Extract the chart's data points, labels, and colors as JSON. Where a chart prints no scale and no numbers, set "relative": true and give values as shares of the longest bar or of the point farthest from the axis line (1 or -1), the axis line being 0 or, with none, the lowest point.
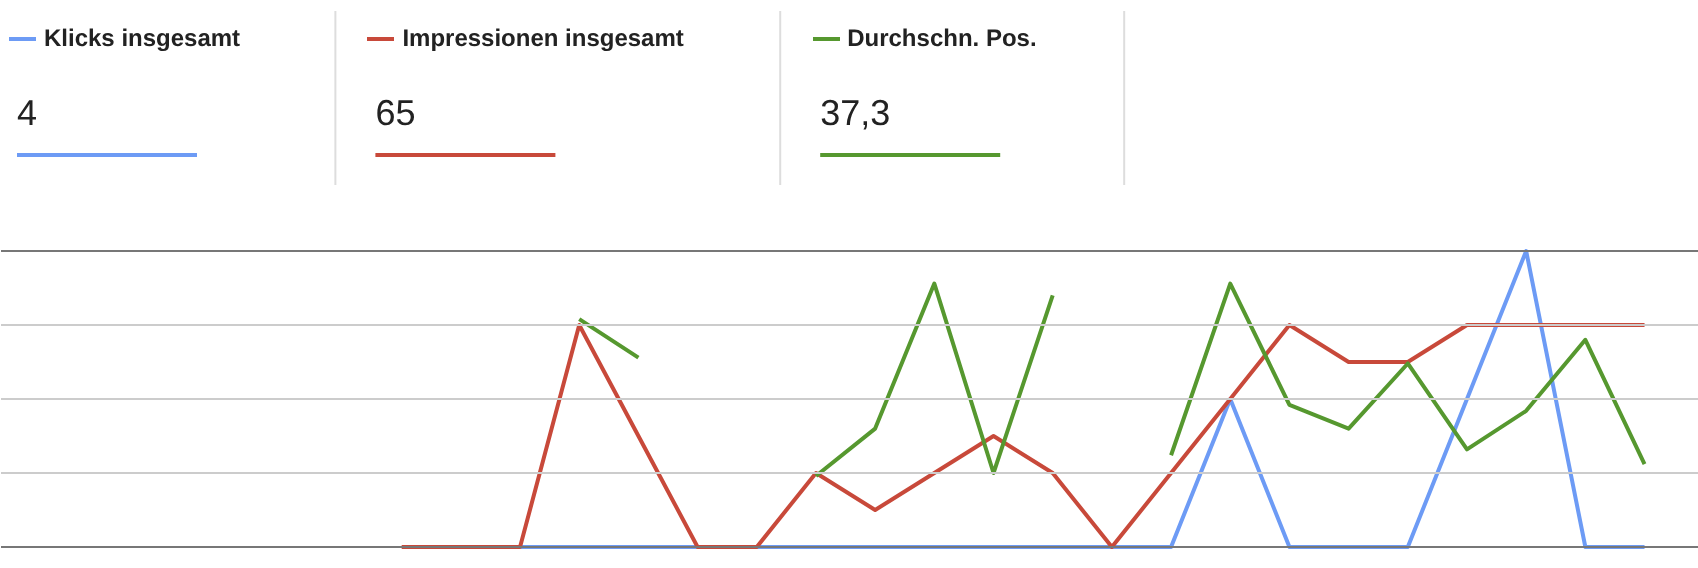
{
  "chart_data": {
    "type": "line",
    "relative": true,
    "grid": "y",
    "legend": "top left",
    "line_style": "solid",
    "marker": "none",
    "categories": [
      null,
      null,
      null,
      null,
      null,
      null,
      null,
      null,
      null,
      null,
      null,
      null,
      null,
      null,
      null,
      null,
      null,
      null,
      null,
      null,
      null,
      null,
      null,
      null,
      null,
      null,
      null,
      null
    ],
    "series": [
      {
        "name": "Klicks insgesamt",
        "color": "#6d9bf5",
        "values": [
          null,
          null,
          null,
          null,
          null,
          null,
          null,
          null,
          0,
          0,
          0,
          0,
          0,
          0,
          0,
          0,
          0,
          0,
          0,
          0,
          0.5,
          0,
          0,
          0,
          0.5,
          1,
          0,
          0
        ]
      },
      {
        "name": "Impressionen insgesamt",
        "color": "#c8493a",
        "values": [
          null,
          null,
          null,
          null,
          null,
          null,
          0,
          0,
          0,
          0.75,
          0.375,
          0,
          0,
          0.25,
          0.125,
          0.25,
          0.375,
          0.25,
          0,
          0.25,
          0.5,
          0.75,
          0.625,
          0.625,
          0.75,
          0.75,
          0.75,
          0.75
        ]
      },
      {
        "name": "Durchschn. Pos.",
        "color": "#56982f",
        "values": [
          null,
          null,
          null,
          null,
          null,
          null,
          null,
          null,
          null,
          0.77,
          0.64,
          null,
          null,
          0.24,
          0.4,
          0.89,
          0.25,
          0.85,
          null,
          0.31,
          0.89,
          0.48,
          0.4,
          0.62,
          0.33,
          0.46,
          0.7,
          0.28
        ]
      }
    ],
    "annotations": [
      "4",
      "65",
      "37,3"
    ]
  }
}
